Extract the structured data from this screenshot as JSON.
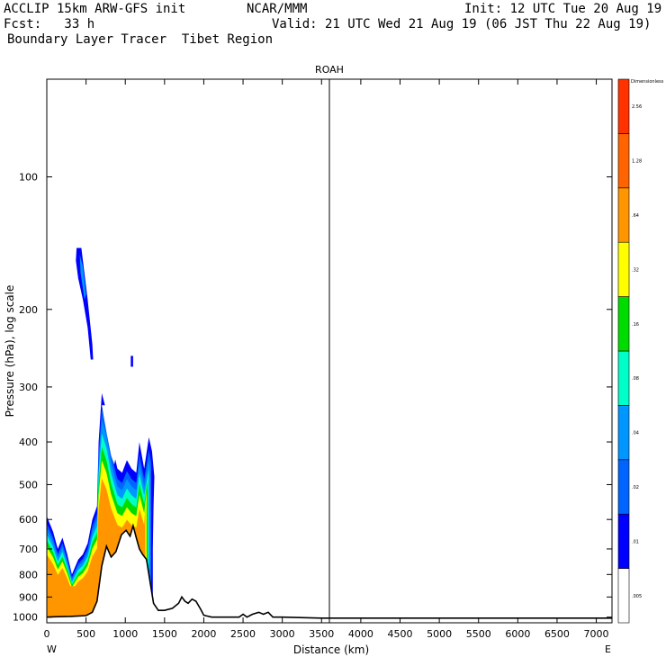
{
  "header": {
    "line1_left": "ACCLIP 15km ARW-GFS init",
    "line1_mid": "NCAR/MMM",
    "line1_right": "Init: 12 UTC Tue 20 Aug 19",
    "line2_left": "Fcst:   33 h",
    "line2_right": "Valid: 21 UTC Wed 21 Aug 19 (06 JST Thu 22 Aug 19)",
    "line3": "Boundary Layer Tracer  Tibet Region"
  },
  "chart_data": {
    "type": "cross-section contour",
    "title": "ROAH",
    "xlabel": "Distance (km)",
    "ylabel": "Pressure (hPa), log scale",
    "x_end_left": "W",
    "x_end_right": "E",
    "xlim": [
      0,
      7200
    ],
    "ylim": [
      1030,
      60
    ],
    "y_scale": "log",
    "x_ticks": [
      0,
      500,
      1000,
      1500,
      2000,
      2500,
      3000,
      3500,
      4000,
      4500,
      5000,
      5500,
      6000,
      6500,
      7000
    ],
    "y_ticks": [
      100,
      200,
      300,
      400,
      500,
      600,
      700,
      800,
      900,
      1000
    ],
    "marker_line_x": 3600,
    "colorbar": {
      "unit_label": "Dimensionless",
      "levels": [
        ".005",
        ".01",
        ".02",
        ".04",
        ".08",
        ".16",
        ".32",
        ".64",
        "1.28",
        "2.56"
      ],
      "colors": [
        "#ffffff",
        "#0000ff",
        "#0064ff",
        "#0096ff",
        "#00ffc8",
        "#00dc00",
        "#ffff00",
        "#ff9600",
        "#ff6400",
        "#ff3200"
      ]
    },
    "terrain_profile": [
      [
        0,
        1000
      ],
      [
        100,
        998
      ],
      [
        300,
        996
      ],
      [
        500,
        992
      ],
      [
        580,
        975
      ],
      [
        640,
        920
      ],
      [
        700,
        765
      ],
      [
        760,
        690
      ],
      [
        820,
        730
      ],
      [
        880,
        710
      ],
      [
        950,
        650
      ],
      [
        1010,
        635
      ],
      [
        1060,
        655
      ],
      [
        1100,
        620
      ],
      [
        1140,
        660
      ],
      [
        1180,
        700
      ],
      [
        1220,
        720
      ],
      [
        1270,
        740
      ],
      [
        1320,
        840
      ],
      [
        1360,
        930
      ],
      [
        1420,
        965
      ],
      [
        1500,
        965
      ],
      [
        1600,
        955
      ],
      [
        1680,
        930
      ],
      [
        1720,
        900
      ],
      [
        1760,
        920
      ],
      [
        1800,
        930
      ],
      [
        1850,
        910
      ],
      [
        1900,
        920
      ],
      [
        1960,
        960
      ],
      [
        2000,
        990
      ],
      [
        2100,
        1000
      ],
      [
        2450,
        1000
      ],
      [
        2500,
        985
      ],
      [
        2550,
        1000
      ],
      [
        2620,
        985
      ],
      [
        2700,
        975
      ],
      [
        2760,
        985
      ],
      [
        2820,
        975
      ],
      [
        2880,
        1000
      ],
      [
        3000,
        1000
      ],
      [
        3500,
        1005
      ],
      [
        7200,
        1005
      ]
    ],
    "tracer_region_low_level": {
      "upper_boundary": [
        [
          0,
          590
        ],
        [
          80,
          640
        ],
        [
          140,
          700
        ],
        [
          200,
          660
        ],
        [
          260,
          720
        ],
        [
          320,
          800
        ],
        [
          400,
          740
        ],
        [
          460,
          720
        ],
        [
          520,
          680
        ],
        [
          580,
          600
        ],
        [
          640,
          560
        ],
        [
          660,
          400
        ],
        [
          700,
          310
        ],
        [
          760,
          340
        ],
        [
          820,
          400
        ],
        [
          900,
          460
        ],
        [
          960,
          470
        ],
        [
          1020,
          440
        ],
        [
          1080,
          460
        ],
        [
          1140,
          470
        ],
        [
          1180,
          400
        ],
        [
          1240,
          460
        ],
        [
          1300,
          390
        ],
        [
          1340,
          420
        ],
        [
          1370,
          480
        ],
        [
          1360,
          560
        ],
        [
          1350,
          700
        ],
        [
          1350,
          900
        ]
      ],
      "gap_boundary": [
        [
          700,
          330
        ],
        [
          760,
          380
        ],
        [
          820,
          430
        ],
        [
          860,
          450
        ],
        [
          880,
          430
        ],
        [
          820,
          380
        ],
        [
          760,
          330
        ]
      ]
    },
    "tracer_high_plume": [
      [
        380,
        145
      ],
      [
        440,
        145
      ],
      [
        520,
        190
      ],
      [
        580,
        240
      ],
      [
        590,
        260
      ],
      [
        560,
        260
      ],
      [
        520,
        220
      ],
      [
        460,
        190
      ],
      [
        400,
        170
      ],
      [
        370,
        155
      ]
    ],
    "tracer_blob": [
      [
        1070,
        255
      ],
      [
        1100,
        255
      ],
      [
        1100,
        270
      ],
      [
        1070,
        270
      ]
    ]
  }
}
